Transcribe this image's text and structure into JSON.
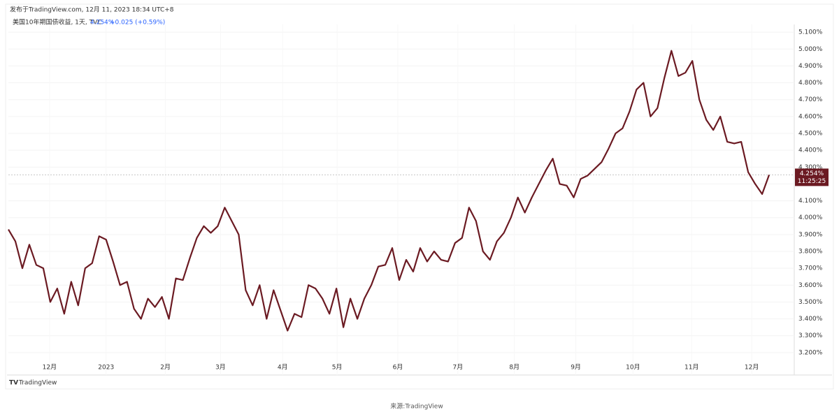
{
  "chart_data": {
    "type": "line",
    "published": "发布于TradingView.com, 12月 11, 2023 18:34 UTC+8",
    "symbol": "美国10年期国债收益, 1天, TVC",
    "last_text": "4.254%",
    "change_text": "+0.025 (+0.59%)",
    "price_tag": {
      "label": "4.254%",
      "time": "11:25:25"
    },
    "brand": "TradingView",
    "caption": "来源:TradingView",
    "series": [
      {
        "name": "美国10年期国债收益",
        "color": "#6b1a22",
        "values": [
          3.93,
          3.86,
          3.7,
          3.84,
          3.72,
          3.7,
          3.5,
          3.58,
          3.43,
          3.62,
          3.48,
          3.7,
          3.73,
          3.89,
          3.87,
          3.74,
          3.6,
          3.62,
          3.46,
          3.4,
          3.52,
          3.47,
          3.53,
          3.4,
          3.64,
          3.63,
          3.76,
          3.88,
          3.95,
          3.91,
          3.95,
          4.06,
          3.98,
          3.9,
          3.57,
          3.48,
          3.6,
          3.4,
          3.57,
          3.45,
          3.33,
          3.43,
          3.41,
          3.6,
          3.58,
          3.52,
          3.43,
          3.58,
          3.35,
          3.52,
          3.4,
          3.52,
          3.6,
          3.71,
          3.72,
          3.82,
          3.63,
          3.75,
          3.68,
          3.82,
          3.74,
          3.8,
          3.75,
          3.74,
          3.85,
          3.88,
          4.06,
          3.98,
          3.8,
          3.75,
          3.86,
          3.91,
          4.0,
          4.12,
          4.03,
          4.12,
          4.2,
          4.28,
          4.35,
          4.2,
          4.19,
          4.12,
          4.23,
          4.25,
          4.29,
          4.33,
          4.41,
          4.5,
          4.53,
          4.63,
          4.76,
          4.8,
          4.6,
          4.65,
          4.83,
          4.99,
          4.84,
          4.86,
          4.93,
          4.7,
          4.58,
          4.52,
          4.6,
          4.45,
          4.44,
          4.45,
          4.27,
          4.2,
          4.14,
          4.254
        ]
      }
    ],
    "xlim": [
      0,
      112.6
    ],
    "xticks": [
      {
        "value": 5.9,
        "label": "12月"
      },
      {
        "value": 14.0,
        "label": "2023"
      },
      {
        "value": 22.5,
        "label": "2月"
      },
      {
        "value": 30.4,
        "label": "3月"
      },
      {
        "value": 39.3,
        "label": "4月"
      },
      {
        "value": 47.1,
        "label": "5月"
      },
      {
        "value": 55.8,
        "label": "6月"
      },
      {
        "value": 64.4,
        "label": "7月"
      },
      {
        "value": 72.5,
        "label": "8月"
      },
      {
        "value": 81.3,
        "label": "9月"
      },
      {
        "value": 89.5,
        "label": "10月"
      },
      {
        "value": 97.9,
        "label": "11月"
      },
      {
        "value": 106.5,
        "label": "12月"
      }
    ],
    "ylim": [
      3.067,
      5.146
    ],
    "yticks": [
      {
        "value": 3.2,
        "label": "3.200%"
      },
      {
        "value": 3.3,
        "label": "3.300%"
      },
      {
        "value": 3.4,
        "label": "3.400%"
      },
      {
        "value": 3.5,
        "label": "3.500%"
      },
      {
        "value": 3.6,
        "label": "3.600%"
      },
      {
        "value": 3.7,
        "label": "3.700%"
      },
      {
        "value": 3.8,
        "label": "3.800%"
      },
      {
        "value": 3.9,
        "label": "3.900%"
      },
      {
        "value": 4.0,
        "label": "4.000%"
      },
      {
        "value": 4.1,
        "label": "4.100%"
      },
      {
        "value": 4.2,
        "label": "4.200%"
      },
      {
        "value": 4.3,
        "label": "4.300%"
      },
      {
        "value": 4.4,
        "label": "4.400%"
      },
      {
        "value": 4.5,
        "label": "4.500%"
      },
      {
        "value": 4.6,
        "label": "4.600%"
      },
      {
        "value": 4.7,
        "label": "4.700%"
      },
      {
        "value": 4.8,
        "label": "4.800%"
      },
      {
        "value": 4.9,
        "label": "4.900%"
      },
      {
        "value": 5.0,
        "label": "5.000%"
      },
      {
        "value": 5.1,
        "label": "5.100%"
      }
    ]
  }
}
